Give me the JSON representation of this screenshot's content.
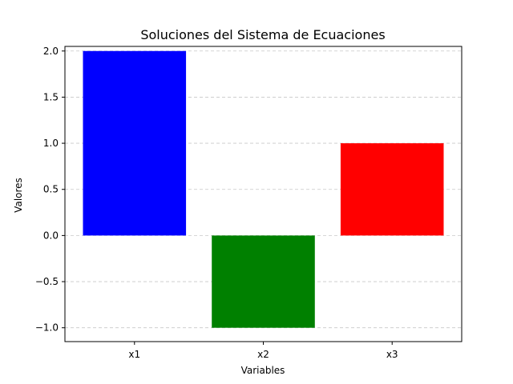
{
  "chart_data": {
    "type": "bar",
    "title": "Soluciones del Sistema de Ecuaciones",
    "xlabel": "Variables",
    "ylabel": "Valores",
    "categories": [
      "x1",
      "x2",
      "x3"
    ],
    "values": [
      2,
      -1,
      1
    ],
    "colors": [
      "#0000ff",
      "#008000",
      "#ff0000"
    ],
    "ylim": [
      -1.15,
      2.05
    ],
    "yticks": [
      -1.0,
      -0.5,
      0.0,
      0.5,
      1.0,
      1.5,
      2.0
    ],
    "ytick_labels": [
      "−1.0",
      "−0.5",
      "0.0",
      "0.5",
      "1.0",
      "1.5",
      "2.0"
    ],
    "grid": {
      "axis": "y",
      "style": "dashed",
      "color": "#c8c8c8"
    }
  }
}
